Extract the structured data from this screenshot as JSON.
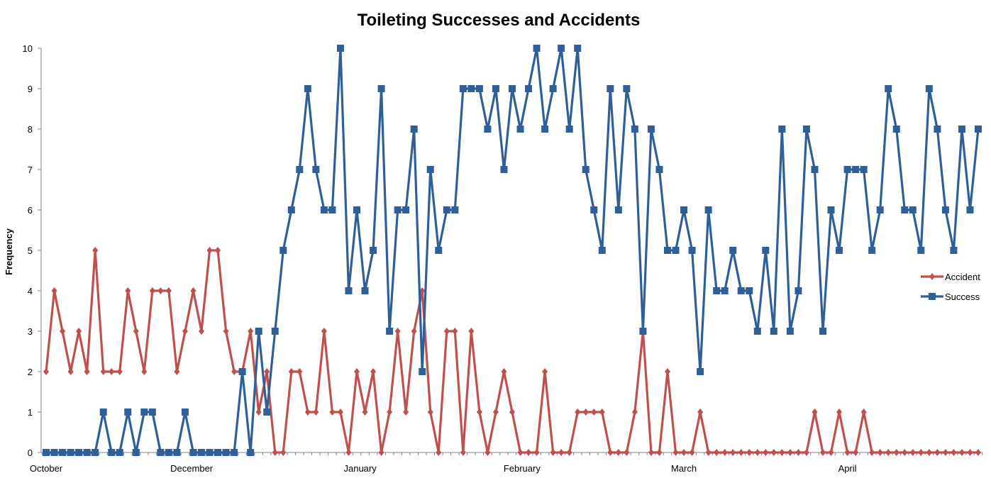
{
  "chart_data": {
    "type": "line",
    "title": "Toileting Successes and Accidents",
    "xlabel": "",
    "ylabel": "Frequency",
    "ylim": [
      0,
      10
    ],
    "yticks": [
      "0",
      "1",
      "2",
      "3",
      "4",
      "5",
      "6",
      "7",
      "8",
      "9",
      "10"
    ],
    "grid": false,
    "legend_position": "right",
    "x_labels": [
      {
        "label": "October",
        "index": 0
      },
      {
        "label": "December",
        "index": 17.8
      },
      {
        "label": "January",
        "index": 38.4
      },
      {
        "label": "February",
        "index": 58.2
      },
      {
        "label": "March",
        "index": 78
      },
      {
        "label": "April",
        "index": 98
      }
    ],
    "series": [
      {
        "name": "Accident",
        "color": "#C0504D",
        "marker": "diamond",
        "values": [
          2,
          4,
          3,
          2,
          3,
          2,
          5,
          2,
          2,
          2,
          4,
          3,
          2,
          4,
          4,
          4,
          2,
          3,
          4,
          3,
          5,
          5,
          3,
          2,
          2,
          3,
          1,
          2,
          0,
          0,
          2,
          2,
          1,
          1,
          3,
          1,
          1,
          0,
          2,
          1,
          2,
          0,
          1,
          3,
          1,
          3,
          4,
          1,
          0,
          3,
          3,
          0,
          3,
          1,
          0,
          1,
          2,
          1,
          0,
          0,
          0,
          2,
          0,
          0,
          0,
          1,
          1,
          1,
          1,
          0,
          0,
          0,
          1,
          3,
          0,
          0,
          2,
          0,
          0,
          0,
          1,
          0,
          0,
          0,
          0,
          0,
          0,
          0,
          0,
          0,
          0,
          0,
          0,
          0,
          1,
          0,
          0,
          1,
          0,
          0,
          1,
          0,
          0,
          0,
          0,
          0,
          0,
          0,
          0,
          0,
          0,
          0,
          0,
          0,
          0
        ]
      },
      {
        "name": "Success",
        "color": "#2E5F98",
        "marker": "square",
        "values": [
          0,
          0,
          0,
          0,
          0,
          0,
          0,
          1,
          0,
          0,
          1,
          0,
          1,
          1,
          0,
          0,
          0,
          1,
          0,
          0,
          0,
          0,
          0,
          0,
          2,
          0,
          3,
          1,
          3,
          5,
          6,
          7,
          9,
          7,
          6,
          6,
          10,
          4,
          6,
          4,
          5,
          9,
          3,
          6,
          6,
          8,
          2,
          7,
          5,
          6,
          6,
          9,
          9,
          9,
          8,
          9,
          7,
          9,
          8,
          9,
          10,
          8,
          9,
          10,
          8,
          10,
          7,
          6,
          5,
          9,
          6,
          9,
          8,
          3,
          8,
          7,
          5,
          5,
          6,
          5,
          2,
          6,
          4,
          4,
          5,
          4,
          4,
          3,
          5,
          3,
          8,
          3,
          4,
          8,
          7,
          3,
          6,
          5,
          7,
          7,
          7,
          5,
          6,
          9,
          8,
          6,
          6,
          5,
          9,
          8,
          6,
          5,
          8,
          6,
          8
        ]
      }
    ]
  }
}
